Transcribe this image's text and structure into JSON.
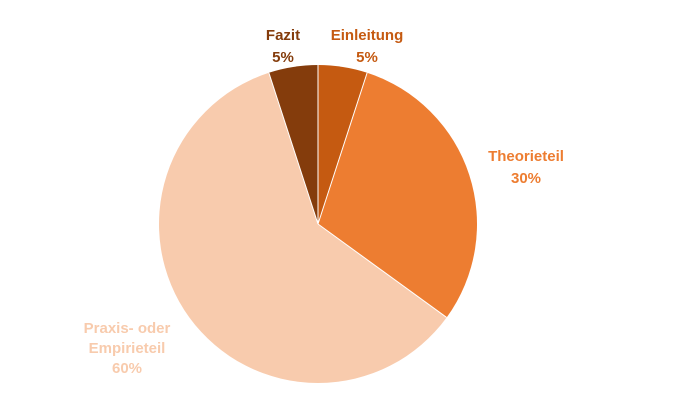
{
  "chart_data": {
    "type": "pie",
    "title": "",
    "slices": [
      {
        "label": "Einleitung",
        "value": 5,
        "display": "5%",
        "color": "#C55A11",
        "label_lines": [
          "Einleitung"
        ]
      },
      {
        "label": "Theorieteil",
        "value": 30,
        "display": "30%",
        "color": "#ED7D31",
        "label_lines": [
          "Theorieteil"
        ]
      },
      {
        "label": "Praxis- oder Empirieteil",
        "value": 60,
        "display": "60%",
        "color": "#F8CBAD",
        "label_lines": [
          "Praxis- oder",
          "Empirieteil"
        ]
      },
      {
        "label": "Fazit",
        "value": 5,
        "display": "5%",
        "color": "#843C0C",
        "label_lines": [
          "Fazit"
        ]
      }
    ],
    "start_angle_deg": 0,
    "direction": "clockwise",
    "legend": "none",
    "data_labels": "outside, category name and percentage, colored like slice"
  }
}
